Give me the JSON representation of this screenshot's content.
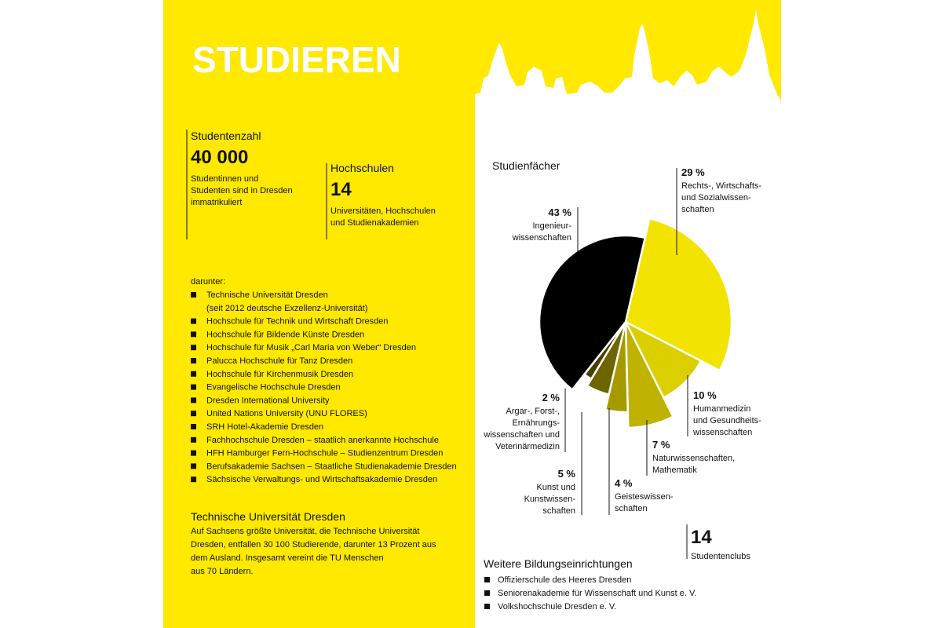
{
  "header": {
    "title": "STUDIEREN"
  },
  "students": {
    "label": "Studentenzahl",
    "number": "40 000",
    "text": [
      "Studentinnen und",
      "Studenten sind in Dresden",
      "immatrikuliert"
    ]
  },
  "universities": {
    "label": "Hochschulen",
    "number": "14",
    "text": [
      "Universitäten, Hochschulen",
      "und Studienakademien"
    ]
  },
  "list": {
    "intro": "darunter:",
    "items": [
      [
        "Technische Universität Dresden",
        "(seit 2012 deutsche Exzellenz-Universität)"
      ],
      [
        "Hochschule für Technik und Wirtschaft Dresden"
      ],
      [
        "Hochschule für Bildende Künste Dresden"
      ],
      [
        "Hochschule für Musik „Carl Maria von Weber“ Dresden"
      ],
      [
        "Palucca Hochschule für Tanz Dresden"
      ],
      [
        "Hochschule für Kirchenmusik Dresden"
      ],
      [
        "Evangelische Hochschule Dresden"
      ],
      [
        "Dresden International University"
      ],
      [
        "United Nations University (UNU FLORES)"
      ],
      [
        "SRH Hotel-Akademie Dresden"
      ],
      [
        "Fachhochschule Dresden – staatlich anerkannte Hochschule"
      ],
      [
        "HFH Hamburger Fern-Hochschule – Studienzentrum Dresden"
      ],
      [
        "Berufsakademie Sachsen – Staatliche Studienakademie Dresden"
      ],
      [
        "Sächsische Verwaltungs- und Wirtschaftsakademie Dresden"
      ]
    ]
  },
  "tu": {
    "title": "Technische Universität Dresden",
    "lines": [
      "Auf Sachsens größte Universität, die Technische Universität",
      "Dresden, entfallen 30 100 Studierende, darunter 13 Prozent aus",
      "dem Ausland. Insgesamt vereint die TU Menschen",
      "aus 70 Ländern."
    ]
  },
  "chart_data": {
    "type": "pie",
    "title": "Studienfächer",
    "categories": [
      [
        "Rechts-, Wirtschafts-",
        "und Sozialwissen-",
        "schaften"
      ],
      [
        "Humanmedizin",
        "und Gesundheits-",
        "wissenschaften"
      ],
      [
        "Naturwissenschaften,",
        "Mathematik"
      ],
      [
        "Geisteswissen-",
        "schaften"
      ],
      [
        "Kunst und",
        "Kunstwissen-",
        "schaften"
      ],
      [
        "Argar-, Forst-,",
        "Ernährungs-",
        "wissenschaften und",
        "Veterinärmedizin"
      ],
      [
        "Ingenieur-",
        "wissenschaften"
      ]
    ],
    "values": [
      29,
      10,
      7,
      4,
      5,
      2,
      43
    ],
    "value_labels": [
      "29 %",
      "10 %",
      "7 %",
      "4 %",
      "5 %",
      "2 %",
      "43 %"
    ],
    "colors": [
      "#f2e400",
      "#dccf00",
      "#bfb200",
      "#a69a00",
      "#6e6500",
      "#474100",
      "#000000"
    ]
  },
  "clubs": {
    "number": "14",
    "label": "Studentenclubs"
  },
  "other": {
    "title": "Weitere Bildungseinrichtungen",
    "items": [
      "Offizierschule des Heeres Dresden",
      "Seniorenakademie für Wissenschaft und Kunst e. V.",
      "Volkshochschule Dresden e. V."
    ]
  }
}
